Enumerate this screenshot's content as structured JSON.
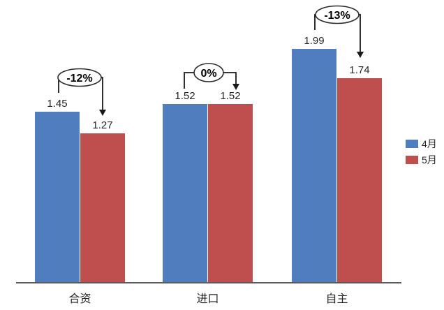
{
  "chart_data": {
    "type": "bar",
    "categories": [
      "合资",
      "进口",
      "自主"
    ],
    "series": [
      {
        "name": "4月",
        "color": "#4f7dbd",
        "values": [
          1.45,
          1.52,
          1.99
        ]
      },
      {
        "name": "5月",
        "color": "#be4f4e",
        "values": [
          1.27,
          1.52,
          1.74
        ]
      }
    ],
    "annotations": [
      {
        "label": "-12%",
        "from_category": "合资",
        "change_between": [
          "4月",
          "5月"
        ]
      },
      {
        "label": "0%",
        "from_category": "进口",
        "change_between": [
          "4月",
          "5月"
        ]
      },
      {
        "label": "-13%",
        "from_category": "自主",
        "change_between": [
          "4月",
          "5月"
        ]
      }
    ],
    "title": "",
    "xlabel": "",
    "ylabel": "",
    "ylim": [
      0,
      2.38
    ],
    "grid": false,
    "value_labels_shown": true,
    "legend_position": "right",
    "axis_color": "#595959",
    "label_color": "#262626"
  }
}
